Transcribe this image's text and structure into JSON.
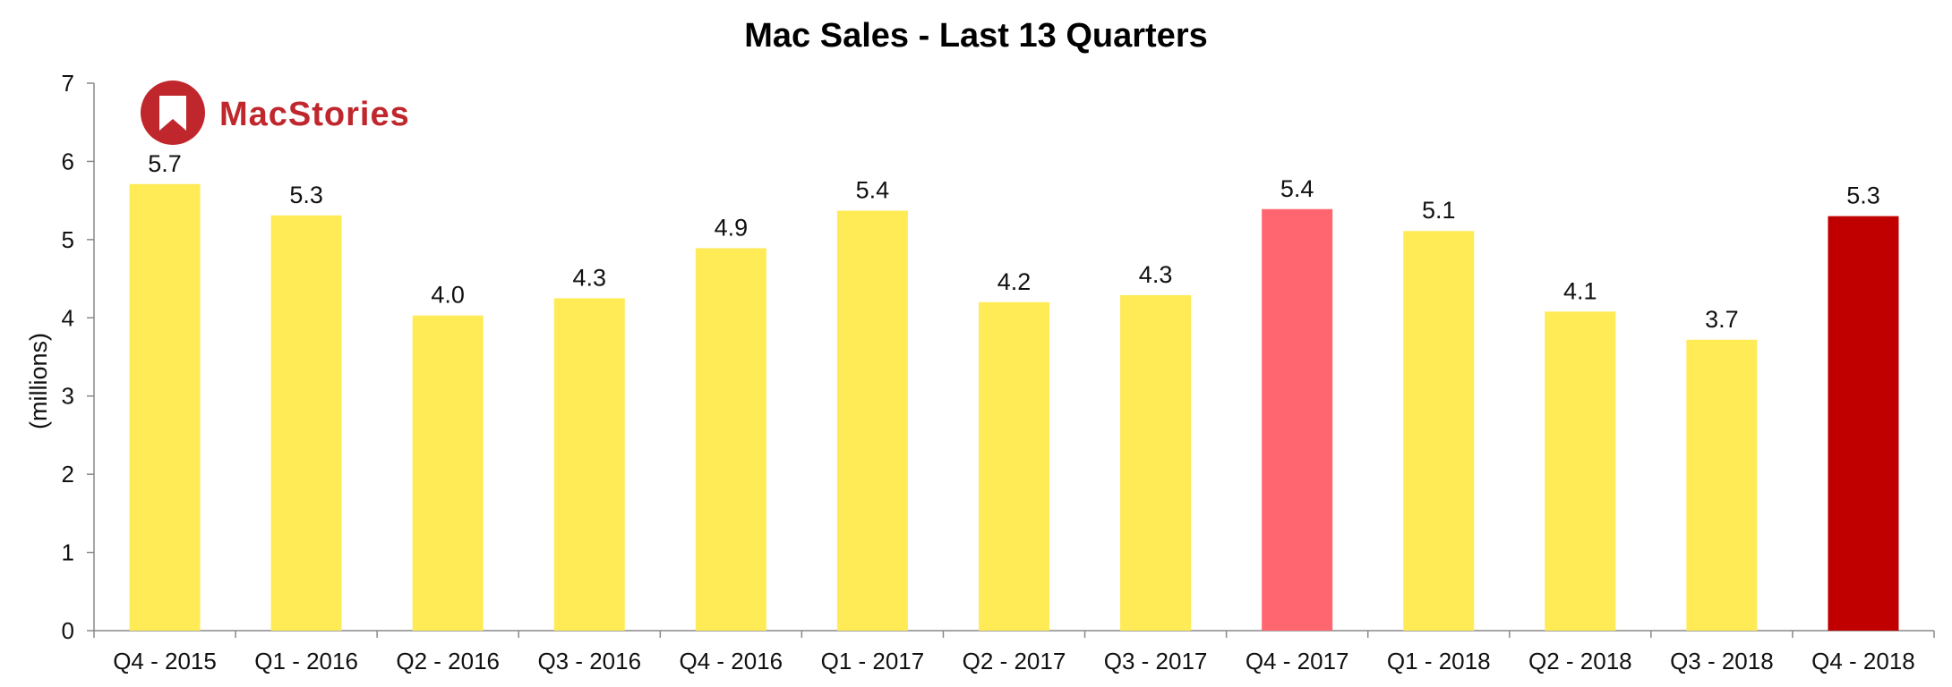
{
  "chart_data": {
    "type": "bar",
    "title_bold": "Mac Sales",
    "title_rest": " - Last 13 Quarters",
    "ylabel": "(millions)",
    "xlabel": "",
    "ylim": [
      0,
      7
    ],
    "yticks": [
      0,
      1,
      2,
      3,
      4,
      5,
      6,
      7
    ],
    "grid": false,
    "legend": "none",
    "categories": [
      "Q4 - 2015",
      "Q1 - 2016",
      "Q2 - 2016",
      "Q3 - 2016",
      "Q4 - 2016",
      "Q1 - 2017",
      "Q2 - 2017",
      "Q3 - 2017",
      "Q4 - 2017",
      "Q1 - 2018",
      "Q2 - 2018",
      "Q3 - 2018",
      "Q4 - 2018"
    ],
    "values": [
      5.71,
      5.31,
      4.03,
      4.25,
      4.89,
      5.37,
      4.2,
      4.29,
      5.39,
      5.11,
      4.08,
      3.72,
      5.3
    ],
    "data_labels": [
      "5.7",
      "5.3",
      "4.0",
      "4.3",
      "4.9",
      "5.4",
      "4.2",
      "4.3",
      "5.4",
      "5.1",
      "4.1",
      "3.7",
      "5.3"
    ],
    "bar_colors": [
      "#ffeb55",
      "#ffeb55",
      "#ffeb55",
      "#ffeb55",
      "#ffeb55",
      "#ffeb55",
      "#ffeb55",
      "#ffeb55",
      "#ff6670",
      "#ffeb55",
      "#ffeb55",
      "#ffeb55",
      "#c00000"
    ]
  },
  "logo": {
    "text": "MacStories",
    "color": "#c0272d",
    "icon": "bookmark-icon"
  }
}
